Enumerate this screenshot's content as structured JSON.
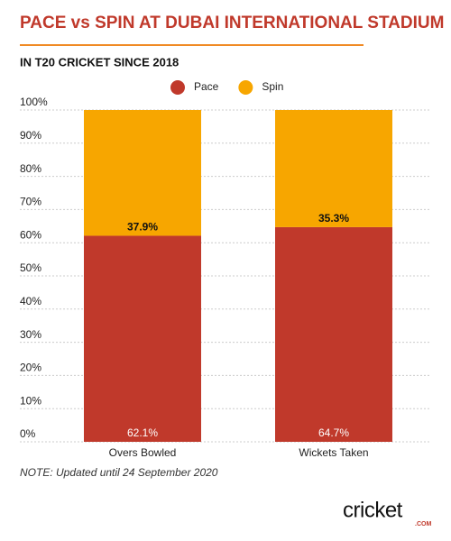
{
  "chart_data": {
    "type": "stacked_bar",
    "title": "PACE vs SPIN AT DUBAI INTERNATIONAL STADIUM",
    "subtitle": "IN T20 CRICKET SINCE 2018",
    "note": "NOTE: Updated until 24 September 2020",
    "logo": {
      "text": "cricket",
      "suffix": ".COM"
    },
    "categories": [
      "Overs Bowled",
      "Wickets Taken"
    ],
    "series": [
      {
        "name": "Pace",
        "color": "#c0392b",
        "values": [
          62.1,
          64.7
        ],
        "value_labels": [
          "62.1%",
          "64.7%"
        ]
      },
      {
        "name": "Spin",
        "color": "#f7a600",
        "values": [
          37.9,
          35.3
        ],
        "value_labels": [
          "37.9%",
          "35.3%"
        ]
      }
    ],
    "ylim": [
      0,
      100
    ],
    "yticks": [
      {
        "value": 0,
        "label": "0%"
      },
      {
        "value": 10,
        "label": "10%"
      },
      {
        "value": 20,
        "label": "20%"
      },
      {
        "value": 30,
        "label": "30%"
      },
      {
        "value": 40,
        "label": "40%"
      },
      {
        "value": 50,
        "label": "50%"
      },
      {
        "value": 60,
        "label": "60%"
      },
      {
        "value": 70,
        "label": "70%"
      },
      {
        "value": 80,
        "label": "80%"
      },
      {
        "value": 90,
        "label": "90%"
      },
      {
        "value": 100,
        "label": "100%"
      }
    ],
    "grid": true
  }
}
